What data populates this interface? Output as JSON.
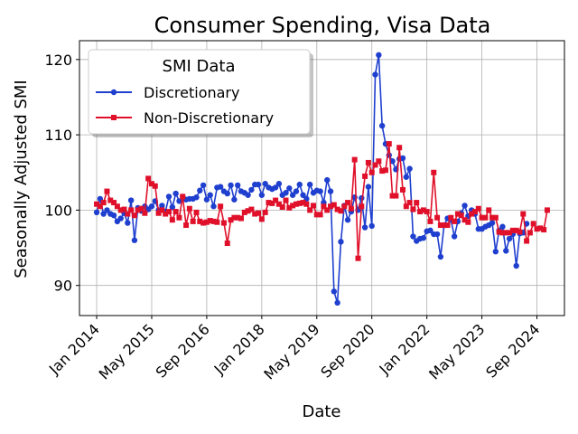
{
  "chart_data": {
    "type": "line",
    "title": "Consumer Spending, Visa Data",
    "xlabel": "Date",
    "ylabel": "Seasonally Adjusted SMI",
    "x_tick_labels": [
      "Jan 2014",
      "May 2015",
      "Sep 2016",
      "Jan 2018",
      "May 2019",
      "Sep 2020",
      "Jan 2022",
      "May 2023",
      "Sep 2024"
    ],
    "x_tick_dates": [
      "2014-01",
      "2015-05",
      "2016-09",
      "2018-01",
      "2019-05",
      "2020-09",
      "2022-01",
      "2023-05",
      "2024-09"
    ],
    "y_ticks": [
      90,
      100,
      110,
      120
    ],
    "ylim": [
      86,
      122.5
    ],
    "xlim": [
      "2013-08",
      "2025-05"
    ],
    "grid": true,
    "legend": {
      "title": "SMI Data",
      "position": "top-left"
    },
    "start_month": "2014-01",
    "series": [
      {
        "name": "Discretionary",
        "color": "#1f3fcf",
        "marker": "circle",
        "values": [
          99.7,
          101.5,
          99.5,
          100.0,
          99.5,
          99.3,
          98.5,
          98.9,
          99.6,
          98.3,
          101.3,
          96.0,
          100.3,
          99.9,
          100.5,
          100.1,
          100.5,
          101.2,
          100.0,
          100.6,
          99.8,
          101.8,
          100.4,
          102.2,
          101.2,
          101.8,
          101.4,
          101.5,
          101.5,
          101.7,
          102.6,
          103.3,
          101.4,
          102.0,
          100.5,
          103.0,
          103.1,
          102.5,
          102.2,
          103.3,
          101.4,
          103.3,
          102.5,
          102.3,
          102.0,
          102.7,
          103.4,
          103.4,
          102.0,
          103.5,
          103.0,
          102.8,
          103.0,
          103.5,
          102.0,
          102.3,
          102.9,
          102.0,
          102.5,
          103.4,
          102.0,
          101.5,
          103.4,
          102.3,
          102.6,
          102.5,
          101.0,
          104.0,
          102.5,
          89.2,
          87.7,
          95.8,
          100.6,
          98.7,
          99.8,
          101.7,
          100.0,
          101.6,
          97.7,
          103.1,
          97.9,
          118.0,
          120.6,
          111.2,
          108.8,
          107.3,
          106.5,
          105.4,
          106.8,
          106.9,
          104.4,
          105.5,
          96.5,
          95.9,
          96.2,
          96.3,
          97.2,
          97.3,
          96.8,
          96.8,
          93.8,
          98.0,
          98.9,
          98.7,
          96.5,
          98.5,
          99.6,
          100.6,
          99.2,
          100.0,
          99.5,
          97.5,
          97.5,
          97.8,
          98.0,
          98.3,
          94.5,
          97.3,
          97.8,
          94.6,
          96.2,
          96.8,
          92.6,
          96.9,
          97.0,
          98.2
        ]
      },
      {
        "name": "Non-Discretionary",
        "color": "#e0102a",
        "marker": "square",
        "values": [
          100.8,
          100.5,
          101.0,
          102.5,
          101.3,
          101.0,
          100.5,
          100.0,
          100.1,
          99.5,
          100.0,
          99.3,
          100.0,
          100.2,
          99.6,
          104.2,
          103.5,
          103.2,
          99.6,
          100.0,
          99.5,
          99.8,
          98.7,
          99.8,
          99.0,
          101.8,
          98.0,
          100.2,
          98.5,
          99.7,
          98.5,
          98.3,
          98.4,
          98.6,
          98.5,
          98.4,
          100.5,
          98.3,
          95.6,
          98.7,
          99.0,
          99.0,
          98.9,
          99.7,
          99.9,
          100.1,
          99.5,
          99.6,
          98.8,
          99.7,
          101.0,
          100.9,
          101.3,
          100.8,
          100.4,
          101.3,
          100.3,
          100.6,
          100.8,
          100.9,
          101.0,
          100.8,
          100.0,
          100.6,
          99.4,
          99.4,
          100.5,
          100.0,
          100.5,
          100.7,
          100.1,
          99.9,
          100.5,
          101.0,
          100.2,
          106.7,
          93.6,
          100.5,
          104.5,
          106.3,
          105.0,
          106.0,
          106.5,
          105.2,
          105.3,
          108.8,
          101.9,
          101.9,
          108.3,
          102.7,
          100.5,
          101.0,
          100.1,
          101.0,
          99.8,
          100.0,
          99.8,
          98.5,
          105.0,
          99.0,
          98.0,
          98.0,
          98.0,
          99.0,
          98.5,
          99.5,
          99.3,
          98.7,
          98.4,
          99.5,
          99.8,
          100.2,
          99.0,
          99.0,
          100.0,
          99.0,
          99.0,
          97.1,
          97.0,
          97.0,
          97.0,
          97.3,
          97.3,
          97.1,
          99.5,
          95.9,
          97.0,
          98.2,
          97.5,
          97.6,
          97.4,
          100.0
        ]
      }
    ]
  }
}
